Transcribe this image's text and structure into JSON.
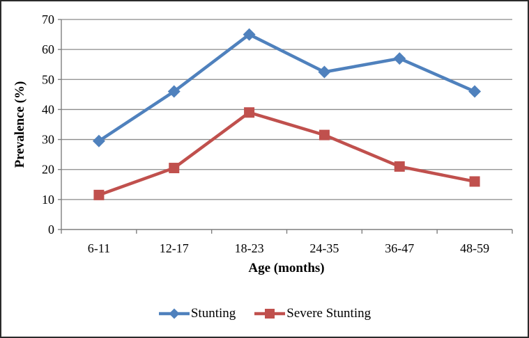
{
  "figure": {
    "y_axis_title": "Prevalence (%)",
    "x_axis_title": "Age (months)"
  },
  "legend": {
    "items": [
      {
        "label": "Stunting",
        "marker": "diamond",
        "color": "#4F81BD"
      },
      {
        "label": "Severe Stunting",
        "marker": "square",
        "color": "#C0504D"
      }
    ]
  },
  "chart_data": {
    "type": "line",
    "title": "",
    "xlabel": "Age (months)",
    "ylabel": "Prevalence (%)",
    "categories": [
      "6-11",
      "12-17",
      "18-23",
      "24-35",
      "36-47",
      "48-59"
    ],
    "series": [
      {
        "name": "Stunting",
        "marker": "diamond",
        "color": "#4F81BD",
        "values": [
          29.5,
          46,
          65,
          52.5,
          57,
          46
        ]
      },
      {
        "name": "Severe Stunting",
        "marker": "square",
        "color": "#C0504D",
        "values": [
          11.5,
          20.5,
          39,
          31.5,
          21,
          16
        ]
      }
    ],
    "ylim": [
      0,
      70
    ],
    "y_ticks": [
      0,
      10,
      20,
      30,
      40,
      50,
      60,
      70
    ],
    "grid": "horizontal",
    "gridline_color": "#8a8a8a",
    "axis_color": "#7f7f7f",
    "text_color": "#000000",
    "background": "#ffffff",
    "border_color": "#2b2b2b",
    "legend_position": "bottom"
  }
}
